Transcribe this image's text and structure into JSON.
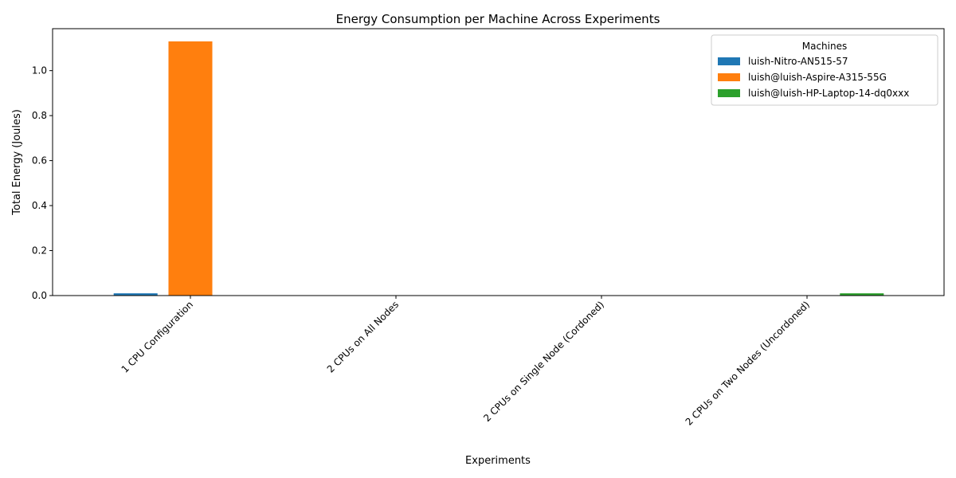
{
  "chart_data": {
    "type": "bar",
    "title": "Energy Consumption per Machine Across Experiments",
    "xlabel": "Experiments",
    "ylabel": "Total Energy (Joules)",
    "categories": [
      "1 CPU Configuration",
      "2 CPUs on All Nodes",
      "2 CPUs on Single Node (Cordoned)",
      "2 CPUs on Two Nodes (Uncordoned)"
    ],
    "series": [
      {
        "name": "luish-Nitro-AN515-57",
        "color": "#1f77b4",
        "values": [
          0.01,
          0,
          0,
          0
        ]
      },
      {
        "name": "luish@luish-Aspire-A315-55G",
        "color": "#ff7f0e",
        "values": [
          1.13,
          0,
          0,
          0
        ]
      },
      {
        "name": "luish@luish-HP-Laptop-14-dq0xxx",
        "color": "#2ca02c",
        "values": [
          0,
          0,
          0,
          0.01
        ]
      }
    ],
    "ylim": [
      0,
      1.1865
    ],
    "yticks": [
      0.0,
      0.2,
      0.4,
      0.6,
      0.8,
      1.0
    ],
    "ytick_labels": [
      "0.0",
      "0.2",
      "0.4",
      "0.6",
      "0.8",
      "1.0"
    ],
    "grid": false,
    "legend": {
      "title": "Machines",
      "placement": "top-right"
    }
  }
}
